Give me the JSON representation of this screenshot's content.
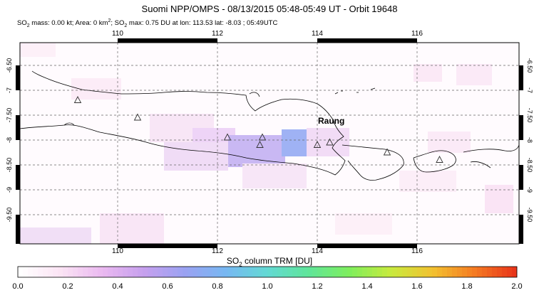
{
  "header": {
    "title": "Suomi NPP/OMPS - 08/13/2015 05:48-05:49 UT - Orbit 19648",
    "subtitle_parts": [
      "SO",
      "2",
      " mass: 0.00 kt; Area: 0 km",
      "2",
      "; SO",
      "2",
      " max: 0.75 DU at lon: 113.53 lat: -8.03 ; 05:49UTC"
    ]
  },
  "map": {
    "lon_ticks": [
      "110",
      "112",
      "114",
      "116"
    ],
    "lat_ticks": [
      "-6.50",
      "-7",
      "-7.50",
      "-8",
      "-8.50",
      "-9",
      "-9.50"
    ],
    "volcano_label": "Raung",
    "volcanoes": [
      {
        "lon": 109.2,
        "lat": -7.2
      },
      {
        "lon": 110.4,
        "lat": -7.55
      },
      {
        "lon": 112.2,
        "lat": -7.95
      },
      {
        "lon": 112.9,
        "lat": -7.95
      },
      {
        "lon": 112.85,
        "lat": -8.1
      },
      {
        "lon": 114.0,
        "lat": -8.1
      },
      {
        "lon": 114.25,
        "lat": -8.05
      },
      {
        "lon": 115.4,
        "lat": -8.25
      },
      {
        "lon": 116.45,
        "lat": -8.4
      }
    ]
  },
  "colorbar": {
    "title_parts": [
      "SO",
      "2",
      " column TRM [DU]"
    ],
    "ticks": [
      "0.0",
      "0.2",
      "0.4",
      "0.6",
      "0.8",
      "1.0",
      "1.2",
      "1.4",
      "1.6",
      "1.8",
      "2.0"
    ],
    "colors": [
      "#ffffff",
      "#fbe3f4",
      "#eab8f0",
      "#c6a0ee",
      "#9aa2f2",
      "#77b8f2",
      "#63d9d4",
      "#5fe59a",
      "#7fee5d",
      "#c8ea3e",
      "#f2c230",
      "#f57d22",
      "#e8361a"
    ]
  }
}
